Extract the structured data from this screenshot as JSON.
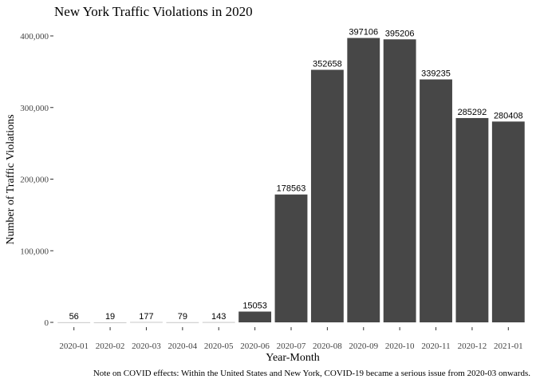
{
  "chart_data": {
    "type": "bar",
    "title": "New York Traffic Violations in 2020",
    "xlabel": "Year-Month",
    "ylabel": "Number of Traffic Violations",
    "caption": "Note on COVID effects: Within the United States and New York, COVID-19 became a serious issue from 2020-03 onwards.",
    "categories": [
      "2020-01",
      "2020-02",
      "2020-03",
      "2020-04",
      "2020-05",
      "2020-06",
      "2020-07",
      "2020-08",
      "2020-09",
      "2020-10",
      "2020-11",
      "2020-12",
      "2021-01"
    ],
    "values": [
      56,
      19,
      177,
      79,
      143,
      15053,
      178563,
      352658,
      397106,
      395206,
      339235,
      285292,
      280408
    ],
    "yticks": [
      0,
      100000,
      200000,
      300000,
      400000
    ],
    "ytick_labels": [
      "0",
      "100,000",
      "200,000",
      "300,000",
      "400,000"
    ],
    "ylim": [
      0,
      420000
    ],
    "grid": false,
    "bar_color": "#474747"
  }
}
